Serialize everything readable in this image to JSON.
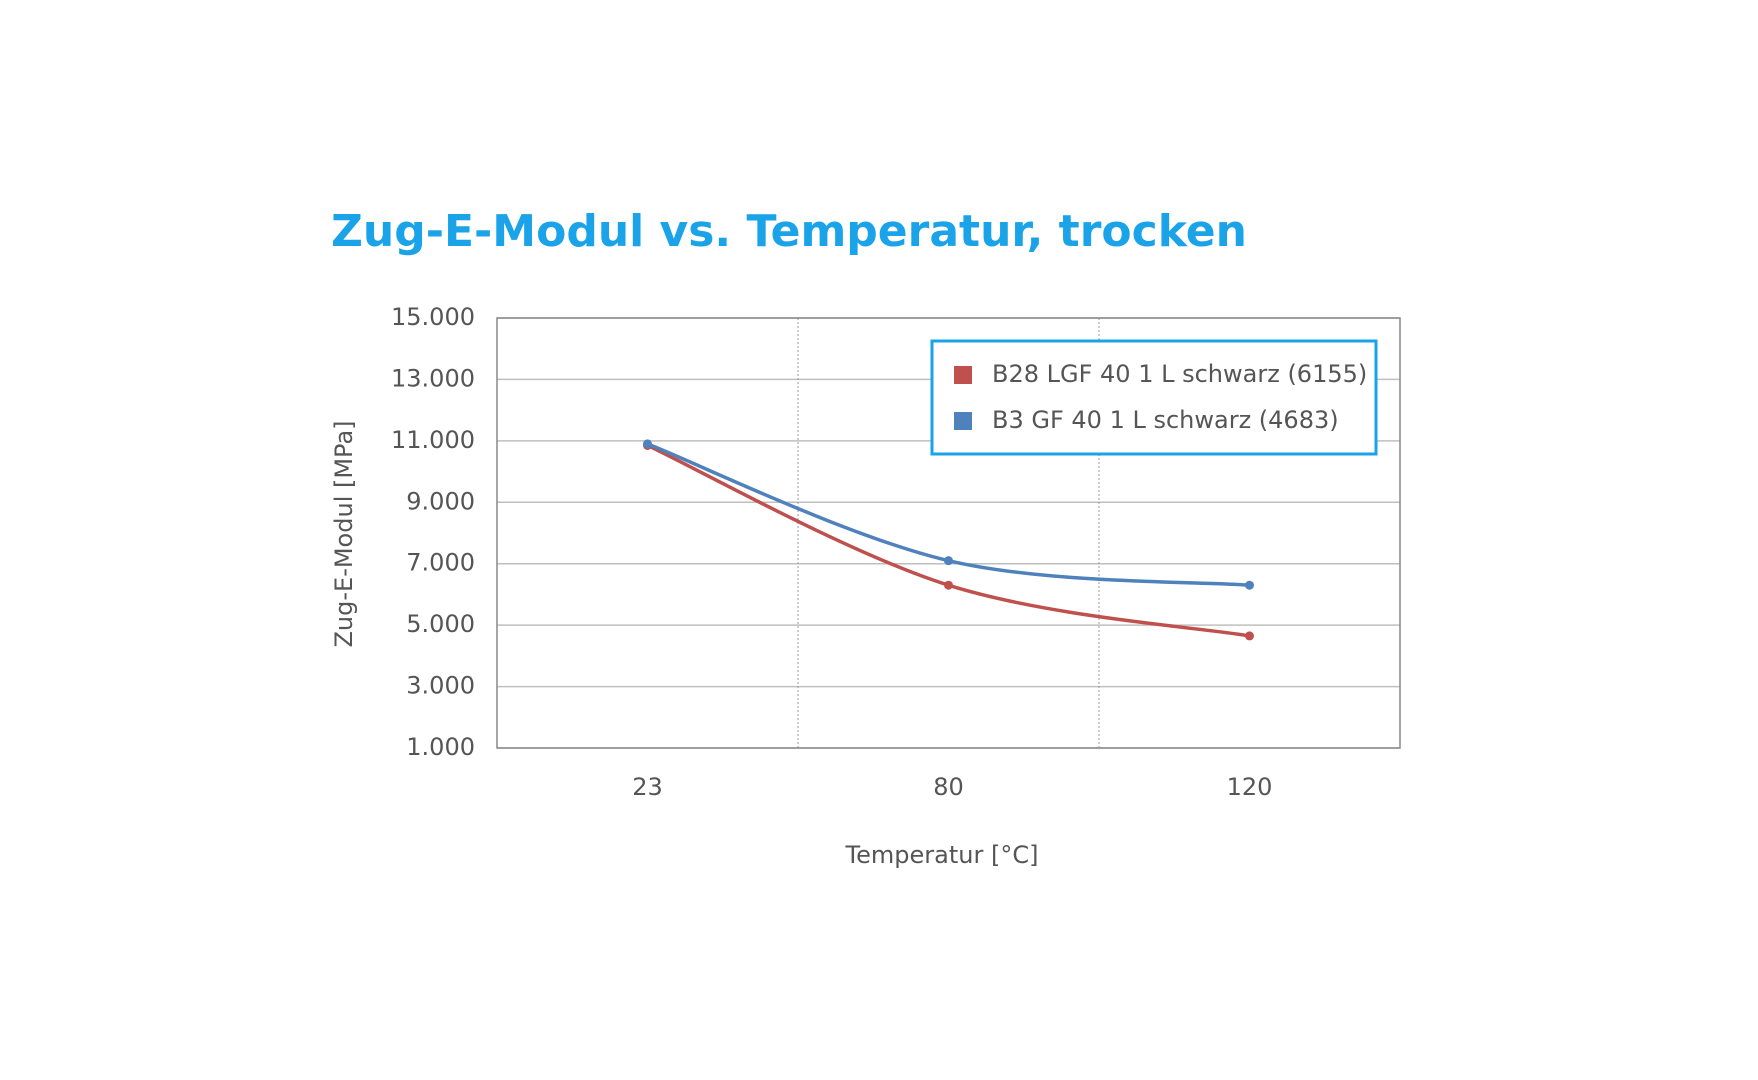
{
  "chart_data": {
    "type": "line",
    "title": "Zug-E-Modul vs. Temperatur, trocken",
    "x_label": "Temperatur [°C]",
    "y_label": "Zug-E-Modul [MPa]",
    "categories": [
      "23",
      "80",
      "120"
    ],
    "series": [
      {
        "name": "B28 LGF 40 1 L schwarz (6155)",
        "color": "#c0504d",
        "values": [
          10850,
          6300,
          4650
        ]
      },
      {
        "name": "B3 GF 40 1 L schwarz (4683)",
        "color": "#4f81bd",
        "values": [
          10900,
          7100,
          6300
        ]
      }
    ],
    "ylim": [
      1000,
      15000
    ],
    "yticks": [
      {
        "value": 1000,
        "label": "1.000"
      },
      {
        "value": 3000,
        "label": "3.000"
      },
      {
        "value": 5000,
        "label": "5.000"
      },
      {
        "value": 7000,
        "label": "7.000"
      },
      {
        "value": 9000,
        "label": "9.000"
      },
      {
        "value": 11000,
        "label": "11.000"
      },
      {
        "value": 13000,
        "label": "13.000"
      },
      {
        "value": 15000,
        "label": "15.000"
      }
    ],
    "grid": true,
    "legend": "upper right",
    "smooth": true
  }
}
